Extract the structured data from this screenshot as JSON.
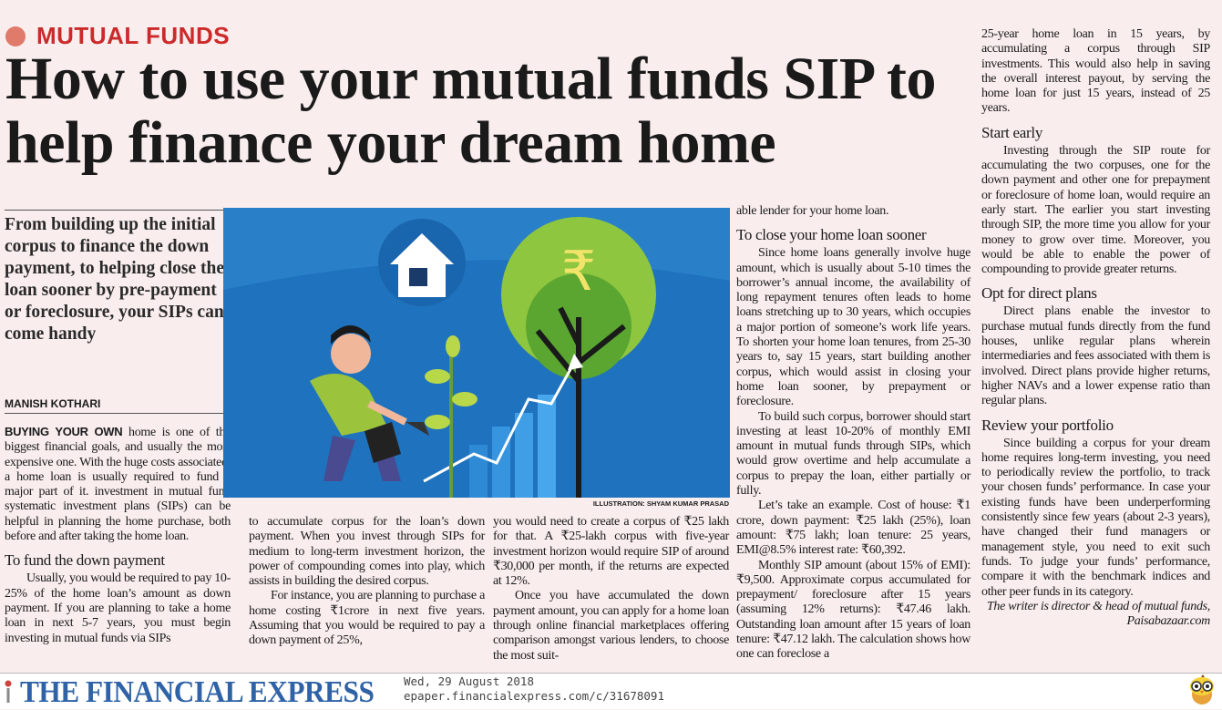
{
  "section": "MUTUAL FUNDS",
  "headline": "How to use your mutual funds SIP to help finance your dream home",
  "lede": "From building up the initial corpus to finance the down payment, to helping close the loan sooner by pre-payment or foreclosure, your SIPs can come handy",
  "byline": "MANISH KOTHARI",
  "illustration_credit": "ILLUSTRATION: SHYAM KUMAR PRASAD",
  "colors": {
    "section": "#cc2a2a",
    "background": "#f9eded",
    "masthead": "#2f62a6",
    "illustration_bg": "#1f72bd"
  },
  "col1": {
    "lead_caps": "BUYING YOUR OWN",
    "p1": " home is one of the biggest financial goals, and usually the most expensive one. With the huge costs associated, a home loan is usually required to fund a major part of it. investment in mutual fund systematic investment plans (SIPs) can be helpful in planning the home purchase, both before and after taking the home loan.",
    "h1": "To fund the down payment",
    "p2": "Usually, you would be required to pay 10-25% of the home loan’s amount as down payment. If you are planning to take a home loan in next 5-7 years, you must begin investing in mutual funds via SIPs"
  },
  "col2": {
    "p1": "to accumulate corpus for the loan’s down payment. When you invest through SIPs for medium to long-term investment horizon, the power of compounding comes into play, which assists in building the desired corpus.",
    "p2": "For instance, you are planning to purchase a home costing ₹1crore in next five years. Assuming that you would be required to pay a down payment of 25%,"
  },
  "col3": {
    "p1": "you would need to create a corpus of ₹25 lakh for that. A ₹25-lakh corpus with five-year investment horizon would require SIP of around ₹30,000 per month, if the returns are expected at 12%.",
    "p2": "Once you have accumulated the down payment amount, you can apply for a home loan through online financial marketplaces offering comparison amongst various lenders, to choose the most suit-"
  },
  "col4": {
    "p0": "able lender for your home loan.",
    "h1": "To close your home loan sooner",
    "p1": "Since home loans generally involve huge amount, which is usually about 5-10 times the borrower’s annual income, the availability of long repayment tenures often leads to home loans stretching up to 30 years, which occupies a major portion of someone’s work life years. To shorten your home loan tenures, from 25-30 years to, say 15 years, start building another corpus, which would assist in closing your home loan sooner, by prepayment or foreclosure.",
    "p2": "To build such corpus, borrower should start investing at least 10-20% of monthly EMI amount in mutual funds through SIPs, which would grow overtime and help accumulate a corpus to prepay the loan, either partially or fully.",
    "p3": "Let’s take an example. Cost of house: ₹1 crore, down payment: ₹25 lakh (25%), loan amount: ₹75 lakh; loan tenure: 25 years, EMI@8.5% interest rate: ₹60,392.",
    "p4": "Monthly SIP amount (about 15% of EMI): ₹9,500. Approximate corpus accumulated for prepayment/ foreclosure after 15 years (assuming 12% returns): ₹47.46 lakh. Outstanding loan amount after 15 years of loan tenure: ₹47.12 lakh. The calculation shows how one can foreclose a"
  },
  "col5": {
    "p0": "25-year home loan in 15 years, by accumulating a corpus through SIP investments. This would also help in saving the overall interest payout, by serving the home loan for just 15 years, instead of 25 years.",
    "h1": "Start early",
    "p1": "Investing through the SIP route for accumulating the two corpuses, one for the down payment and other one for prepayment or foreclosure of home loan, would require an early start. The earlier you start investing through SIP, the more time you allow for your money to grow over time. Moreover, you would be able to enable the power of compounding to provide greater returns.",
    "h2": "Opt for direct plans",
    "p2": "Direct plans enable the investor to purchase mutual funds directly from the fund houses, unlike regular plans wherein intermediaries and fees associated with them is involved. Direct plans provide higher returns, higher NAVs and a lower expense ratio than regular plans.",
    "h3": "Review your portfolio",
    "p3": "Since building a corpus for your dream home requires long-term investing, you need to periodically review the portfolio, to track your chosen funds’ performance. In case your existing funds have been underperforming consistently since few years (about 2-3 years), have changed their fund managers or management style, you need to exit such funds. To judge your funds’ performance, compare it with the benchmark indices and other peer funds in its category.",
    "signoff": "The writer is director & head of mutual funds, Paisabazaar.com"
  },
  "footer": {
    "masthead": "THE FINANCIAL EXPRESS",
    "date": "Wed, 29 August 2018",
    "url": "epaper.financialexpress.com/c/31678091"
  }
}
